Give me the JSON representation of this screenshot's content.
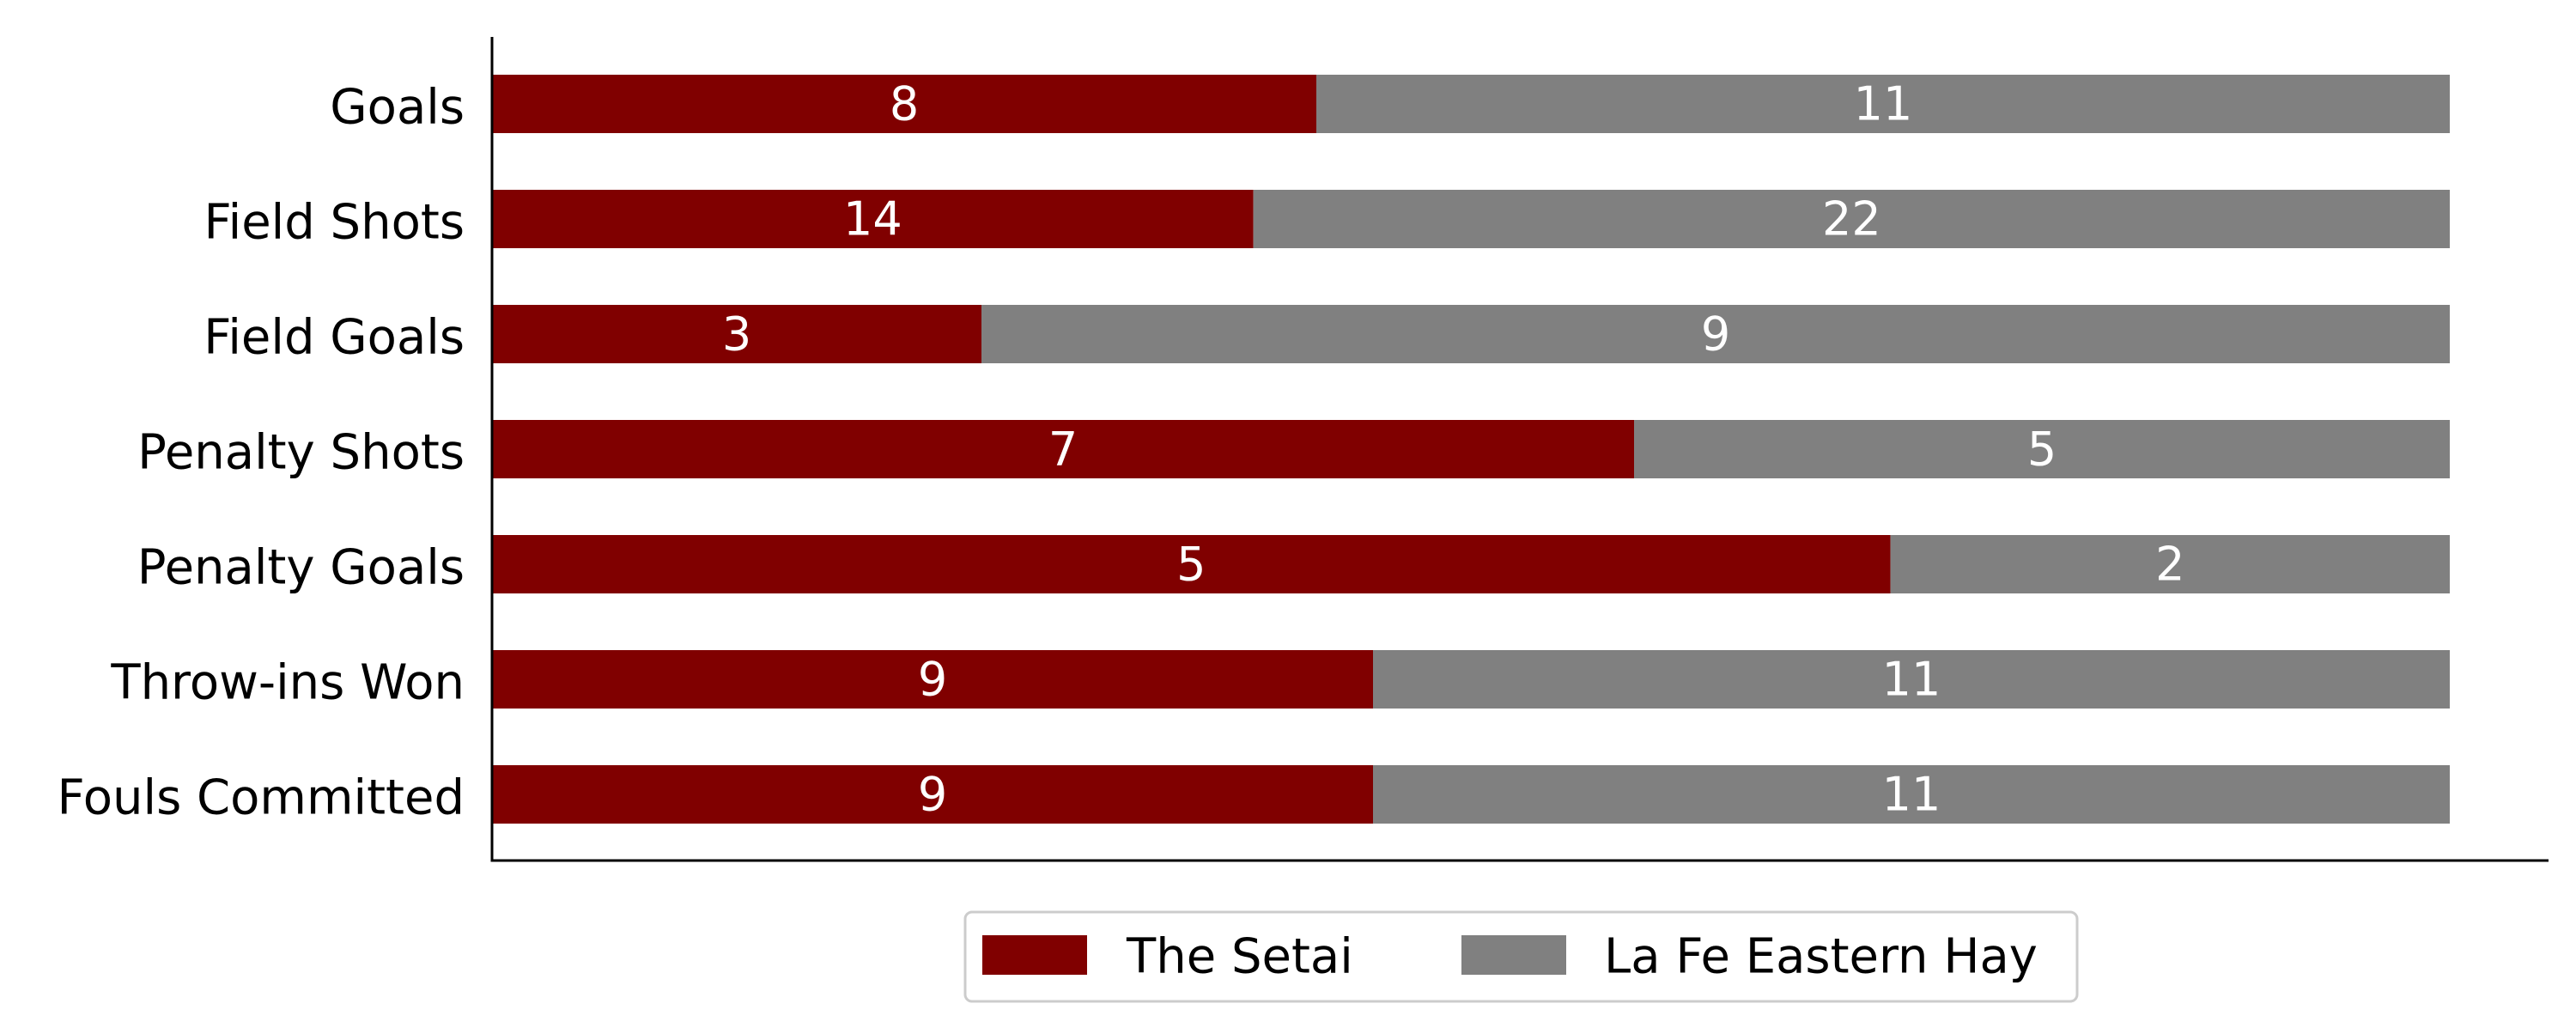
{
  "chart_data": {
    "type": "bar",
    "orientation": "horizontal",
    "stacking": "normalized",
    "categories": [
      "Goals",
      "Field Shots",
      "Field Goals",
      "Penalty Shots",
      "Penalty Goals",
      "Throw-ins Won",
      "Fouls Committed"
    ],
    "series": [
      {
        "name": "The Setai",
        "color": "#800000",
        "values": [
          8,
          14,
          3,
          7,
          5,
          9,
          9
        ]
      },
      {
        "name": "La Fe Eastern Hay",
        "color": "#808080",
        "values": [
          11,
          22,
          9,
          5,
          2,
          11,
          11
        ]
      }
    ],
    "title": "",
    "xlabel": "",
    "ylabel": "",
    "grid": false,
    "legend": {
      "position": "bottom-center",
      "entries": [
        "The Setai",
        "La Fe Eastern Hay"
      ]
    },
    "data_labels": true,
    "x_ticks_visible": false
  }
}
